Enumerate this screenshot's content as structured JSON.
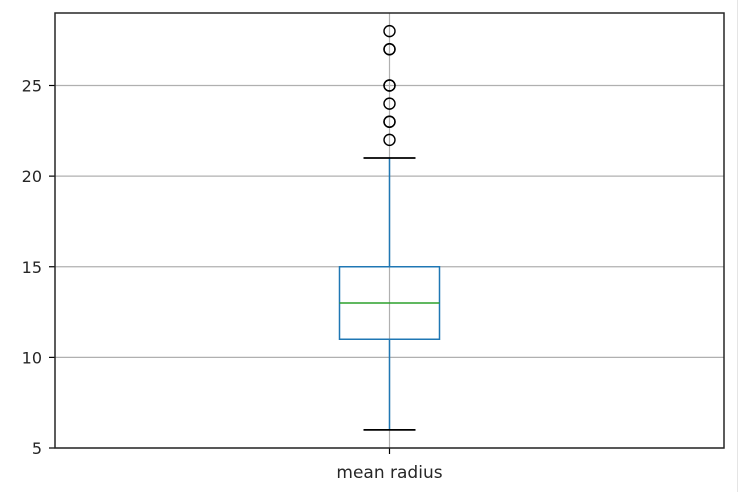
{
  "chart_data": {
    "type": "box",
    "categories": [
      "mean radius"
    ],
    "boxes": [
      {
        "label": "mean radius",
        "whisker_low": 6,
        "q1": 11,
        "median": 13,
        "q3": 15,
        "whisker_high": 21,
        "outliers": [
          22,
          23,
          23,
          24,
          25,
          25,
          27,
          27,
          28
        ]
      }
    ],
    "yticks": [
      5,
      10,
      15,
      20,
      25
    ],
    "ylim": [
      5,
      29
    ],
    "grid": true,
    "title": "",
    "xlabel": "",
    "ylabel": "",
    "colors": {
      "box": "#1f77b4",
      "median": "#2ca02c",
      "caps": "#000000",
      "grid": "#b0b0b0",
      "outlier": "#000000"
    }
  }
}
